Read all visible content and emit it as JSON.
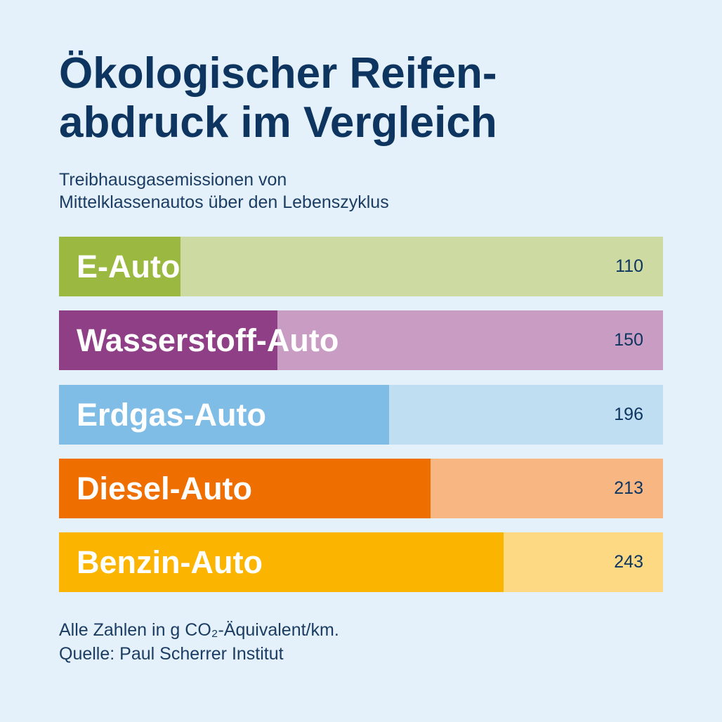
{
  "title": {
    "line1": "Ökologischer Reifen-",
    "line2": "abdruck im Vergleich"
  },
  "subtitle": {
    "line1": "Treibhausgasemissionen von",
    "line2": "Mittelklassenautos über den Lebenszyklus"
  },
  "footnote": {
    "line1": "Alle Zahlen in g CO₂-Äquivalent/km.",
    "line2": "Quelle: Paul Scherrer Institut"
  },
  "chart_data": {
    "type": "bar",
    "orientation": "horizontal",
    "categories": [
      "E-Auto",
      "Wasserstoff-Auto",
      "Erdgas-Auto",
      "Diesel-Auto",
      "Benzin-Auto"
    ],
    "values": [
      110,
      150,
      196,
      213,
      243
    ],
    "value_labels": [
      "110",
      "150",
      "196",
      "213",
      "243"
    ],
    "colors": [
      "#9bb840",
      "#8e3f85",
      "#7fbde6",
      "#ee6e00",
      "#fbb500"
    ],
    "background_colors": [
      "#cddaa1",
      "#c99dc3",
      "#c0def2",
      "#f7b682",
      "#fdd984"
    ],
    "grid": false,
    "legend": "none"
  }
}
